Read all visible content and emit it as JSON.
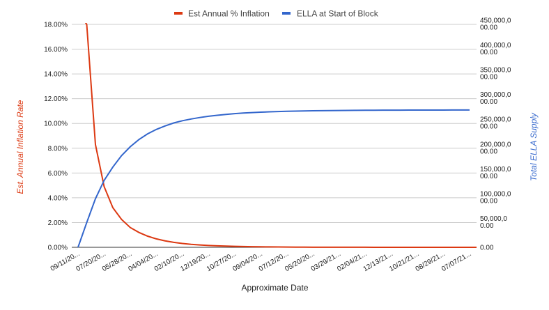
{
  "chart_data": {
    "type": "line",
    "legend_position": "top",
    "grid": true,
    "xlabel": "Approximate Date",
    "ylabel_left": "Est. Annual Inflation Rate",
    "ylabel_right": "Total ELLA Supply",
    "y_left_range": [
      0,
      18
    ],
    "y_right_range": [
      0,
      450000
    ],
    "y_left_ticks": [
      "0.00%",
      "2.00%",
      "4.00%",
      "6.00%",
      "8.00%",
      "10.00%",
      "12.00%",
      "14.00%",
      "16.00%",
      "18.00%"
    ],
    "y_right_ticks": [
      [
        "0.00"
      ],
      [
        "50,000,0",
        "0.00"
      ],
      [
        "100,000,0",
        "00.00"
      ],
      [
        "150,000,0",
        "00.00"
      ],
      [
        "200,000,0",
        "00.00"
      ],
      [
        "250,000,0",
        "00.00"
      ],
      [
        "300,000,0",
        "00.00"
      ],
      [
        "350,000,0",
        "00.00"
      ],
      [
        "400,000,0",
        "00.00"
      ],
      [
        "450,000,0",
        "00.00"
      ]
    ],
    "x_tick_labels": [
      "09/11/20...",
      "07/20/20...",
      "05/28/20...",
      "04/04/20...",
      "02/10/20...",
      "12/19/20...",
      "10/27/20...",
      "09/04/20...",
      "07/12/20...",
      "05/20/20...",
      "03/29/21...",
      "02/04/21...",
      "12/13/21...",
      "10/21/21...",
      "08/29/21...",
      "07/07/21..."
    ],
    "series": [
      {
        "name": "Est Annual % Inflation",
        "axis": "left",
        "color": "#dc3912",
        "values": [
          null,
          null,
          8.3,
          4.9,
          3.2,
          2.25,
          1.6,
          1.2,
          0.9,
          0.68,
          0.52,
          0.4,
          0.31,
          0.24,
          0.19,
          0.15,
          0.12,
          0.1,
          0.08,
          0.065,
          0.05,
          0.04,
          0.032,
          0.025,
          0.02,
          0.016,
          0.013,
          0.01,
          0.008,
          0.007,
          0.006,
          0.005,
          0.004,
          0.004,
          0.003,
          0.003,
          0.002,
          0.002,
          0.002,
          0.001,
          0.001,
          0.001,
          0.001,
          0.001,
          0.001,
          0.001,
          0.001
        ],
        "first_segment": {
          "from": [
            0.5,
            18.5
          ],
          "to": [
            1,
            18
          ]
        }
      },
      {
        "name": "ELLA at Start of Block",
        "axis": "right",
        "color": "#3366cc",
        "values": [
          0,
          50000,
          98000,
          135000,
          162000,
          185000,
          203000,
          217500,
          229000,
          238000,
          245000,
          251000,
          255500,
          259000,
          262000,
          264500,
          266500,
          268300,
          269800,
          271000,
          272000,
          272800,
          273500,
          274100,
          274600,
          275000,
          275300,
          275600,
          275800,
          276000,
          276200,
          276400,
          276500,
          276600,
          276700,
          276800,
          276850,
          276900,
          276950,
          277000,
          277050,
          277100,
          277100,
          277150,
          277150,
          277200
        ]
      }
    ]
  }
}
